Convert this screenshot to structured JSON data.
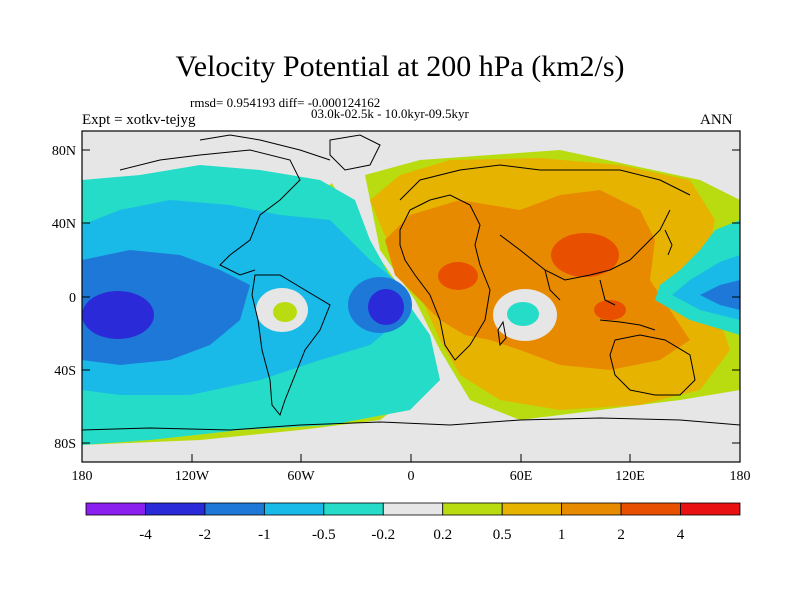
{
  "header": {
    "title": "Velocity Potential at 200 hPa (km2/s)",
    "rmsd_line": "rmsd= 0.954193 diff= -0.000124162",
    "range_line": "03.0k-02.5k - 10.0kyr-09.5kyr",
    "expt_label": "Expt = xotkv-tejyg",
    "season_label": "ANN"
  },
  "axes": {
    "lat_ticks": [
      "80N",
      "40N",
      "0",
      "40S",
      "80S"
    ],
    "lon_ticks": [
      "180",
      "120W",
      "60W",
      "0",
      "60E",
      "120E",
      "180"
    ]
  },
  "colorbar": {
    "labels": [
      "-4",
      "-2",
      "-1",
      "-0.5",
      "-0.2",
      "0.2",
      "0.5",
      "1",
      "2",
      "4"
    ],
    "colors": [
      "#8a1ff0",
      "#2a2ad8",
      "#1e78d8",
      "#19b9e8",
      "#24dcc8",
      "#e6e6e6",
      "#b8dc10",
      "#e6b400",
      "#e88a00",
      "#e85000",
      "#e81010"
    ]
  },
  "chart_data": {
    "type": "contour-map",
    "title": "Velocity Potential at 200 hPa (km2/s)",
    "levels": [
      -4,
      -2,
      -1,
      -0.5,
      -0.2,
      0.2,
      0.5,
      1,
      2,
      4
    ],
    "lon_range": [
      -180,
      180
    ],
    "lat_range": [
      -90,
      90
    ]
  }
}
